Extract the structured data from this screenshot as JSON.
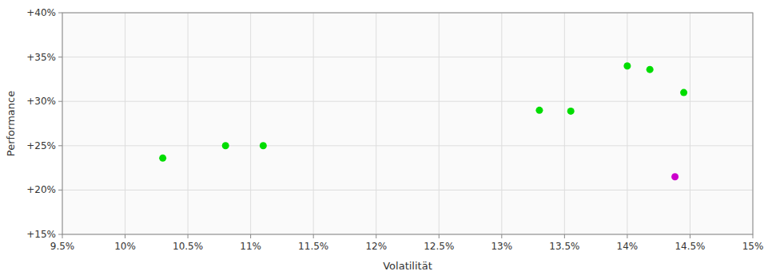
{
  "chart_data": {
    "type": "scatter",
    "x_label": "Volatilität",
    "y_label": "Performance",
    "xlim": [
      0.095,
      0.15
    ],
    "ylim": [
      0.15,
      0.4
    ],
    "xticks": [
      {
        "value": 0.095,
        "label": "9.5%"
      },
      {
        "value": 0.1,
        "label": "10%"
      },
      {
        "value": 0.105,
        "label": "10.5%"
      },
      {
        "value": 0.11,
        "label": "11%"
      },
      {
        "value": 0.115,
        "label": "11.5%"
      },
      {
        "value": 0.12,
        "label": "12%"
      },
      {
        "value": 0.125,
        "label": "12.5%"
      },
      {
        "value": 0.13,
        "label": "13%"
      },
      {
        "value": 0.135,
        "label": "13.5%"
      },
      {
        "value": 0.14,
        "label": "14%"
      },
      {
        "value": 0.145,
        "label": "14.5%"
      },
      {
        "value": 0.15,
        "label": "15%"
      }
    ],
    "yticks": [
      {
        "value": 0.15,
        "label": "+15%"
      },
      {
        "value": 0.2,
        "label": "+20%"
      },
      {
        "value": 0.25,
        "label": "+25%"
      },
      {
        "value": 0.3,
        "label": "+30%"
      },
      {
        "value": 0.35,
        "label": "+35%"
      },
      {
        "value": 0.4,
        "label": "+40%"
      }
    ],
    "grid": true,
    "series": [
      {
        "color": "#00dd00",
        "x": [
          0.103,
          0.108,
          0.111,
          0.133,
          0.1355,
          0.14,
          0.1418,
          0.1445
        ],
        "values": [
          0.236,
          0.25,
          0.25,
          0.29,
          0.289,
          0.34,
          0.336,
          0.31
        ]
      },
      {
        "color": "#cc00cc",
        "x": [
          0.1438
        ],
        "values": [
          0.215
        ]
      }
    ]
  }
}
